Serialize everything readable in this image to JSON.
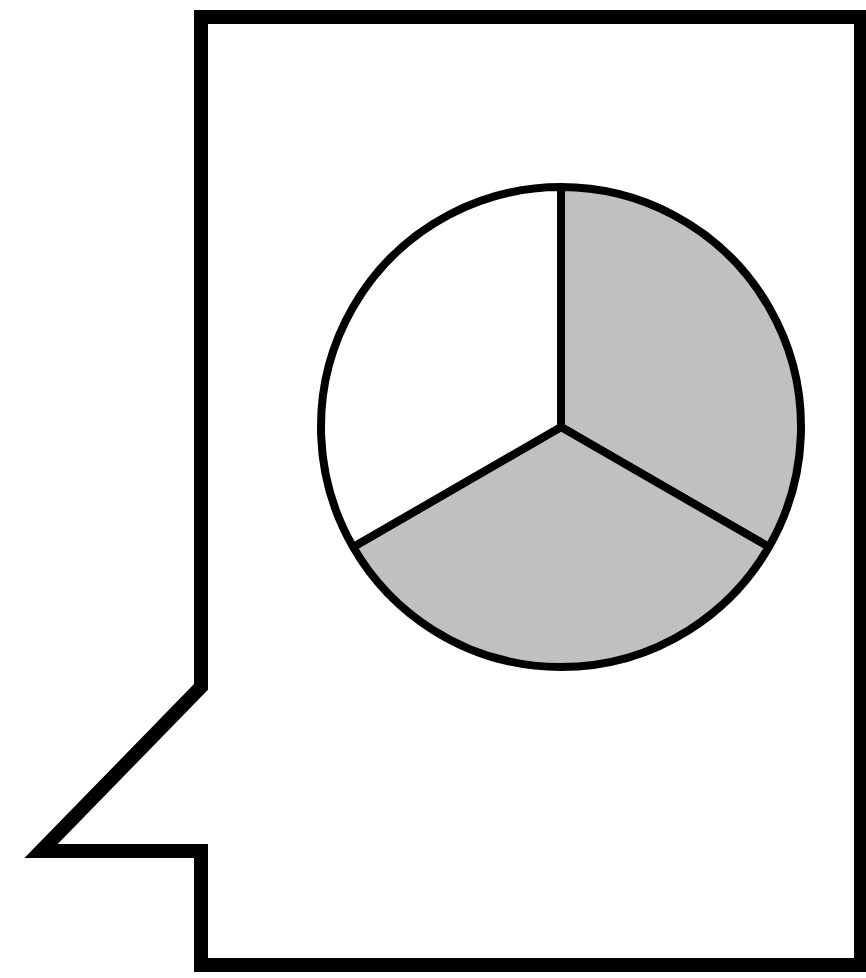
{
  "chart_data": {
    "type": "pie",
    "categories": [
      null,
      null,
      null
    ],
    "values": [
      33.3,
      33.3,
      33.3
    ],
    "colors": [
      "#c0c0c0",
      "#c0c0c0",
      "#ffffff"
    ]
  }
}
